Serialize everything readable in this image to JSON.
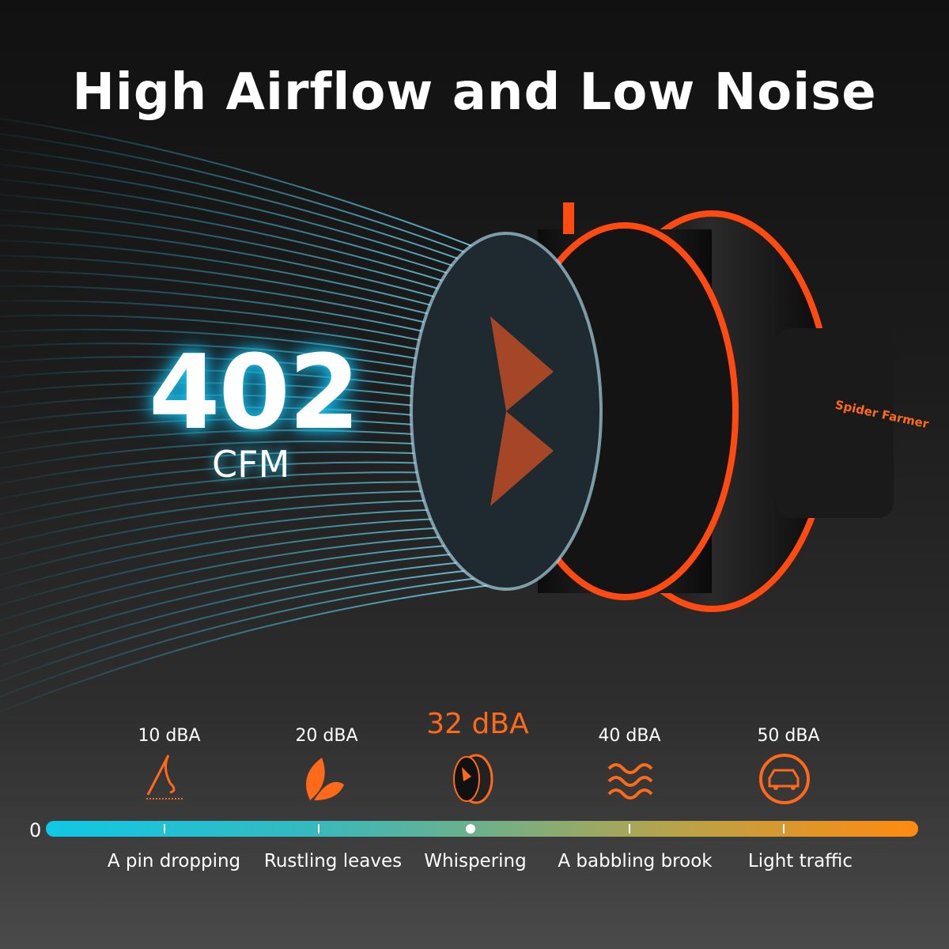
{
  "title": "High Airflow and Low Noise",
  "airflow": {
    "value": "402",
    "unit": "CFM"
  },
  "brand": "Spider Farmer",
  "scale": {
    "zero": "0",
    "levels": [
      {
        "level": "10 dBA",
        "desc": "A pin dropping",
        "icon": "needle-icon"
      },
      {
        "level": "20 dBA",
        "desc": "Rustling leaves",
        "icon": "leaf-icon"
      },
      {
        "level": "32 dBA",
        "desc": "Whispering",
        "icon": "fan-icon",
        "highlight": true
      },
      {
        "level": "40 dBA",
        "desc": "A babbling brook",
        "icon": "waves-icon"
      },
      {
        "level": "50 dBA",
        "desc": "Light traffic",
        "icon": "car-icon"
      }
    ]
  },
  "colors": {
    "accent": "#ff6a1a",
    "airflow": "#19c8f0"
  }
}
